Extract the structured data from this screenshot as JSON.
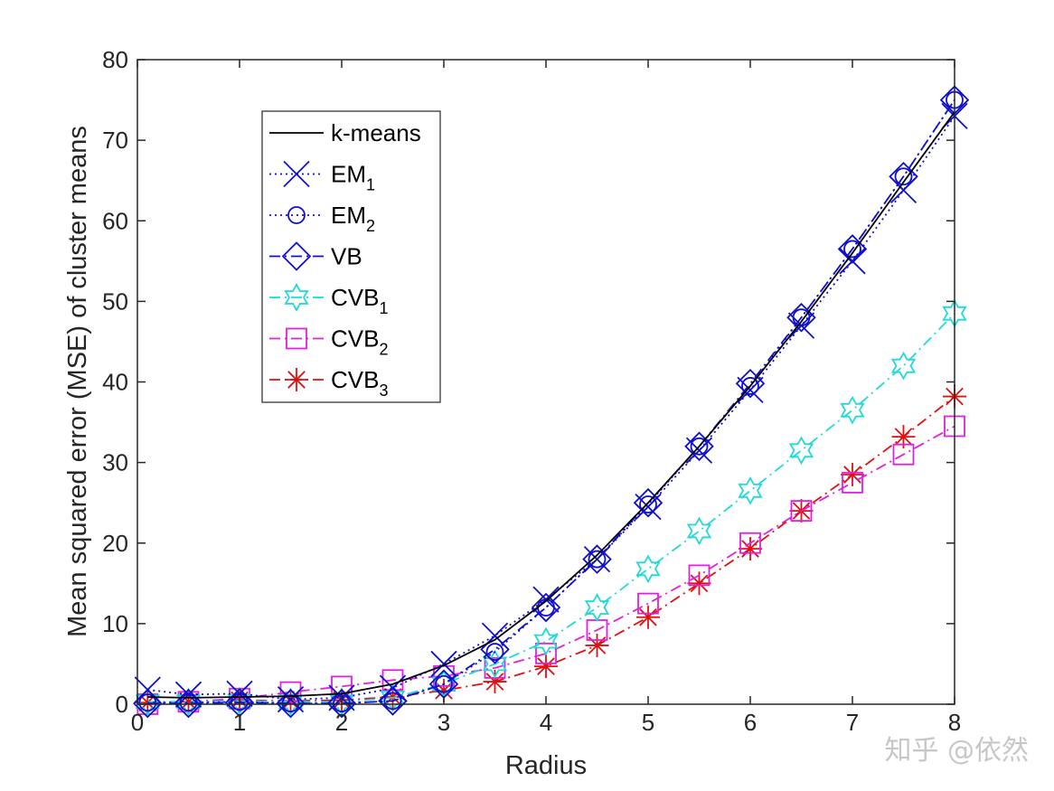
{
  "chart_data": {
    "type": "line",
    "title": "",
    "xlabel": "Radius",
    "ylabel": "Mean squared error (MSE) of cluster means",
    "xlim": [
      0,
      8
    ],
    "ylim": [
      0,
      80
    ],
    "xticks": [
      0,
      1,
      2,
      3,
      4,
      5,
      6,
      7,
      8
    ],
    "yticks": [
      0,
      10,
      20,
      30,
      40,
      50,
      60,
      70,
      80
    ],
    "x": [
      0.1,
      0.5,
      1,
      1.5,
      2,
      2.5,
      3,
      3.5,
      4,
      4.5,
      5,
      5.5,
      6,
      6.5,
      7,
      7.5,
      8
    ],
    "legend_position": "upper-left",
    "series": [
      {
        "name": "k-means",
        "base": "k-means",
        "sub": "",
        "color": "#000000",
        "dash": "",
        "marker": "none",
        "values": [
          0.9,
          0.8,
          0.9,
          1.0,
          1.3,
          2.5,
          4.8,
          8.0,
          12.8,
          18.5,
          25.0,
          32.0,
          39.5,
          47.5,
          56.0,
          64.8,
          73.5
        ]
      },
      {
        "name": "EM1",
        "base": "EM",
        "sub": "1",
        "color": "#1010cc",
        "dash": "2,4",
        "marker": "x",
        "values": [
          1.8,
          1.2,
          1.3,
          0.6,
          0.8,
          2.0,
          5.0,
          8.5,
          13.0,
          18.0,
          24.5,
          31.5,
          39.0,
          47.0,
          55.0,
          63.8,
          73.0
        ]
      },
      {
        "name": "EM2",
        "base": "EM",
        "sub": "2",
        "color": "#1010cc",
        "dash": "2,4",
        "marker": "o",
        "values": [
          0.2,
          0.2,
          0.3,
          0.1,
          0.1,
          0.4,
          2.5,
          6.5,
          12.0,
          18.0,
          24.8,
          32.0,
          39.5,
          48.0,
          56.5,
          65.5,
          75.0
        ]
      },
      {
        "name": "VB",
        "base": "VB",
        "sub": "",
        "color": "#1010cc",
        "dash": "12,5,2,5",
        "marker": "diamond",
        "values": [
          0.1,
          0.1,
          0.2,
          0.1,
          0.1,
          0.4,
          2.5,
          6.8,
          12.0,
          18.0,
          25.0,
          32.0,
          39.8,
          48.0,
          56.5,
          65.5,
          75.0
        ]
      },
      {
        "name": "CVB1",
        "base": "CVB",
        "sub": "1",
        "color": "#22d8d8",
        "dash": "12,5,2,5",
        "marker": "hexagram",
        "values": [
          0.3,
          0.3,
          0.4,
          0.3,
          0.3,
          0.8,
          2.5,
          5.0,
          7.8,
          12.0,
          16.8,
          21.5,
          26.5,
          31.5,
          36.5,
          42.0,
          48.5
        ]
      },
      {
        "name": "CVB2",
        "base": "CVB",
        "sub": "2",
        "color": "#e020e0",
        "dash": "12,5,2,5",
        "marker": "square",
        "values": [
          0.0,
          0.3,
          0.7,
          1.5,
          2.2,
          3.0,
          3.5,
          4.5,
          6.3,
          9.2,
          12.5,
          16.0,
          20.0,
          24.0,
          27.5,
          31.0,
          34.5
        ]
      },
      {
        "name": "CVB3",
        "base": "CVB",
        "sub": "3",
        "color": "#dd1111",
        "dash": "12,5,2,5",
        "marker": "star",
        "values": [
          0.2,
          0.3,
          0.5,
          0.4,
          0.5,
          0.9,
          1.7,
          2.8,
          4.7,
          7.3,
          10.8,
          15.0,
          19.3,
          24.0,
          28.5,
          33.2,
          38.2
        ]
      }
    ]
  },
  "watermark": "知乎 @依然"
}
